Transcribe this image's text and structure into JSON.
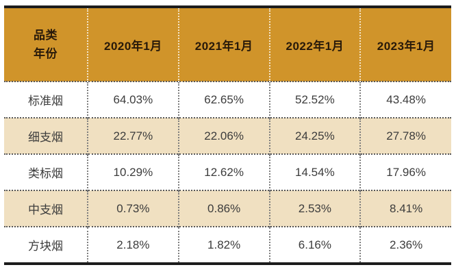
{
  "chart_data": {
    "type": "table",
    "corner_header": {
      "line1": "品类",
      "line2": "年份"
    },
    "columns": [
      "2020年1月",
      "2021年1月",
      "2022年1月",
      "2023年1月"
    ],
    "rows": [
      {
        "label": "标准烟",
        "values": [
          "64.03%",
          "62.65%",
          "52.52%",
          "43.48%"
        ]
      },
      {
        "label": "细支烟",
        "values": [
          "22.77%",
          "22.06%",
          "24.25%",
          "27.78%"
        ]
      },
      {
        "label": "类标烟",
        "values": [
          "10.29%",
          "12.62%",
          "14.54%",
          "17.96%"
        ]
      },
      {
        "label": "中支烟",
        "values": [
          "0.73%",
          "0.86%",
          "2.53%",
          "8.41%"
        ]
      },
      {
        "label": "方块烟",
        "values": [
          "2.18%",
          "1.82%",
          "6.16%",
          "2.36%"
        ]
      }
    ],
    "layout_hints": {
      "grid": "dotted separators",
      "header_separator_color": "white dotted",
      "body_separator_color": "dark dotted",
      "outer_border": "thick black top and bottom only"
    },
    "colors": {
      "header_bg": "#D0942A",
      "row_bg": "#FFFFFF",
      "row_alt_bg": "#F0E0C1",
      "outer_border": "#1C1C1C",
      "header_text": "#27190A",
      "body_text": "#3C3C3C"
    }
  }
}
